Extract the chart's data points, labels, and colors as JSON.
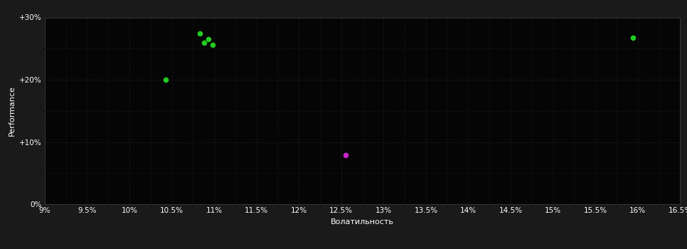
{
  "background_color": "#1a1a1a",
  "plot_bg_color": "#050505",
  "grid_color": "#2a2a2a",
  "text_color": "#ffffff",
  "xlabel": "Волатильность",
  "ylabel": "Performance",
  "xlim": [
    0.09,
    0.165
  ],
  "ylim": [
    0.0,
    0.3
  ],
  "xticks": [
    0.09,
    0.095,
    0.1,
    0.105,
    0.11,
    0.115,
    0.12,
    0.125,
    0.13,
    0.135,
    0.14,
    0.145,
    0.15,
    0.155,
    0.16,
    0.165
  ],
  "xtick_labels": [
    "9%",
    "9.5%",
    "10%",
    "10.5%",
    "11%",
    "11.5%",
    "12%",
    "12.5%",
    "13%",
    "13.5%",
    "14%",
    "14.5%",
    "15%",
    "15.5%",
    "16%",
    "16.5%"
  ],
  "yticks": [
    0.0,
    0.1,
    0.2,
    0.3
  ],
  "ytick_labels": [
    "0%",
    "+10%",
    "+20%",
    "+30%"
  ],
  "green_points": [
    [
      0.1083,
      0.274
    ],
    [
      0.1088,
      0.26
    ],
    [
      0.1093,
      0.265
    ],
    [
      0.1098,
      0.256
    ],
    [
      0.1043,
      0.2
    ],
    [
      0.1594,
      0.267
    ]
  ],
  "magenta_points": [
    [
      0.1255,
      0.079
    ]
  ],
  "green_color": "#22cc22",
  "magenta_color": "#cc22cc",
  "marker_size": 30
}
